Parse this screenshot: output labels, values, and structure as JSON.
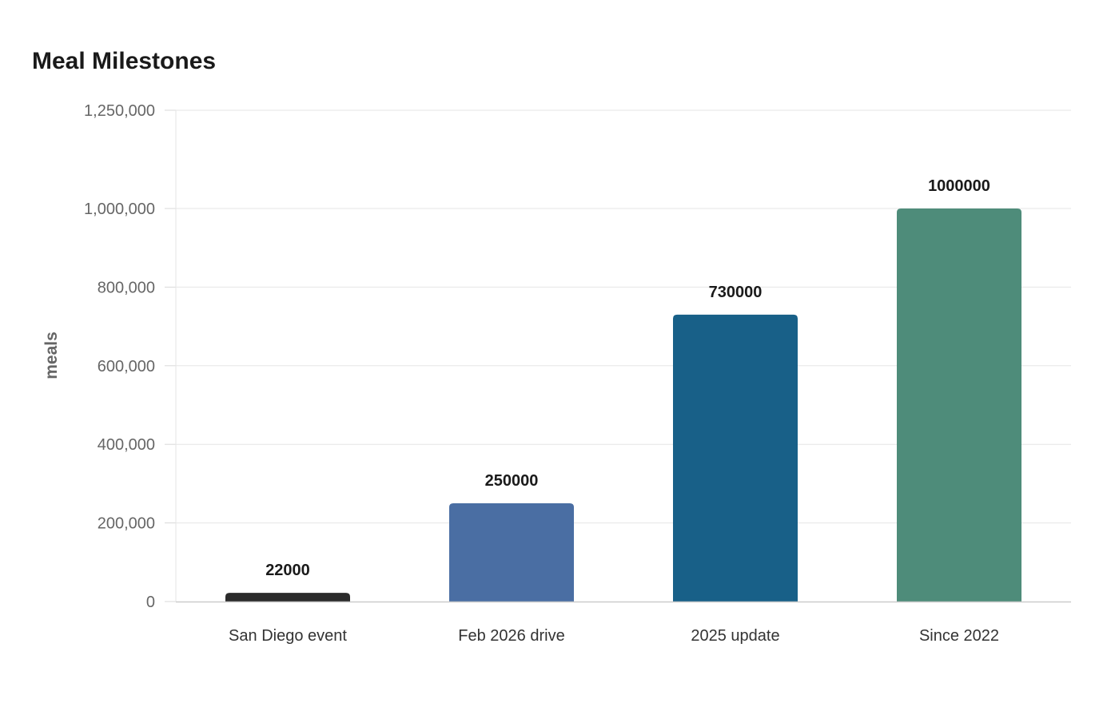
{
  "chart_data": {
    "type": "bar",
    "title": "Meal Milestones",
    "xlabel": "",
    "ylabel": "meals",
    "categories": [
      "San Diego event",
      "Feb 2026 drive",
      "2025 update",
      "Since 2022"
    ],
    "values": [
      22000,
      250000,
      730000,
      1000000
    ],
    "data_labels": [
      "22000",
      "250000",
      "730000",
      "1000000"
    ],
    "colors": [
      "#2b2b2b",
      "#4a6ea3",
      "#186088",
      "#4e8c7a"
    ],
    "ylim": [
      0,
      1250000
    ],
    "yticks": [
      0,
      200000,
      400000,
      600000,
      800000,
      1000000,
      1250000
    ],
    "ytick_labels": [
      "0",
      "200,000",
      "400,000",
      "600,000",
      "800,000",
      "1,000,000",
      "1,250,000"
    ],
    "grid": true,
    "legend": "none"
  }
}
